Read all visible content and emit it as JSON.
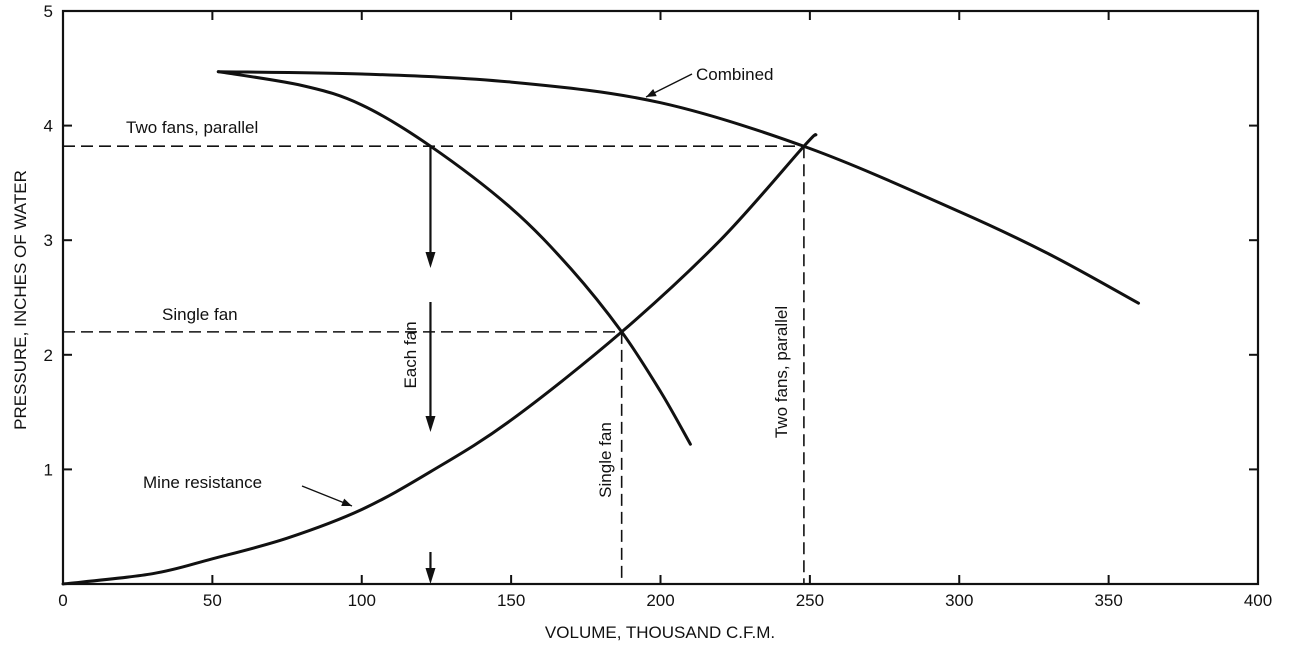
{
  "chart_data": {
    "type": "line",
    "title": "",
    "xlabel": "VOLUME, THOUSAND C.F.M.",
    "ylabel": "PRESSURE, INCHES OF WATER",
    "xlim": [
      0,
      400
    ],
    "ylim": [
      0,
      5
    ],
    "x_ticks": [
      0,
      50,
      100,
      150,
      200,
      250,
      300,
      350,
      400
    ],
    "x_tick_labels": [
      "0",
      "50",
      "100",
      "150",
      "200",
      "250",
      "300",
      "350",
      "400"
    ],
    "y_ticks": [
      1,
      2,
      3,
      4,
      5
    ],
    "y_tick_labels": [
      "1",
      "2",
      "3",
      "4",
      "5"
    ],
    "grid": false,
    "series": [
      {
        "name": "Combined",
        "x": [
          52,
          100,
          150,
          200,
          250,
          300,
          330,
          360
        ],
        "y": [
          4.47,
          4.45,
          4.38,
          4.2,
          3.8,
          3.25,
          2.88,
          2.45
        ]
      },
      {
        "name": "",
        "x": [
          52,
          80,
          100,
          123,
          150,
          170,
          187,
          200,
          210
        ],
        "y": [
          4.47,
          4.35,
          4.18,
          3.82,
          3.28,
          2.75,
          2.2,
          1.68,
          1.22
        ]
      },
      {
        "name": "Mine resistance",
        "x": [
          0,
          30,
          50,
          75,
          100,
          123,
          150,
          187,
          220,
          248,
          252
        ],
        "y": [
          0,
          0.09,
          0.22,
          0.4,
          0.65,
          0.98,
          1.43,
          2.2,
          3.0,
          3.82,
          3.92
        ]
      }
    ],
    "reference_points": [
      {
        "x": 187,
        "y": 2.2
      },
      {
        "x": 248,
        "y": 3.82
      },
      {
        "x": 123,
        "y": 3.82
      }
    ],
    "annotations": {
      "combined": "Combined",
      "two_fans_parallel": "Two fans, parallel",
      "single_fan": "Single fan",
      "each_fan": "Each fan",
      "mine_resistance": "Mine resistance",
      "single_fan_vertical": "Single fan",
      "two_fans_parallel_vertical": "Two fans, parallel"
    }
  }
}
